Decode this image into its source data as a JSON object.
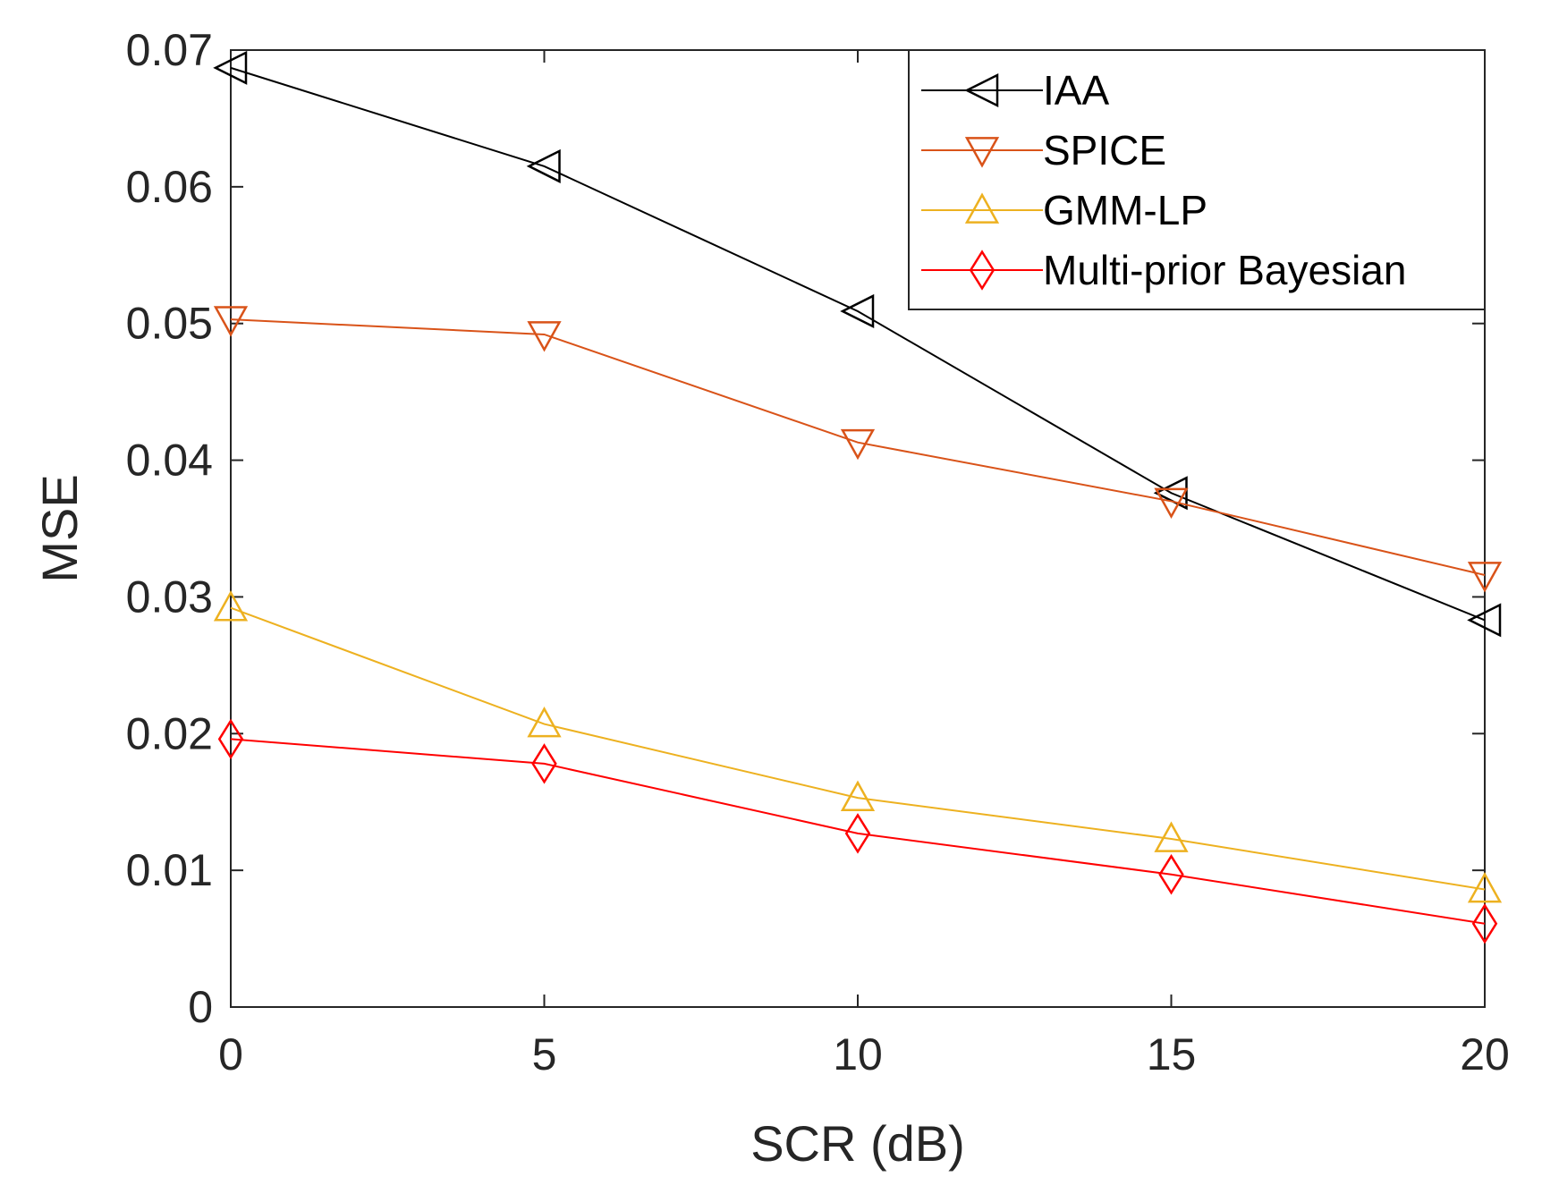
{
  "chart_data": {
    "type": "line",
    "title": "",
    "xlabel": "SCR (dB)",
    "ylabel": "MSE",
    "x": [
      0,
      5,
      10,
      15,
      20
    ],
    "xlim": [
      0,
      20
    ],
    "ylim": [
      0,
      0.07
    ],
    "xticks": [
      0,
      5,
      10,
      15,
      20
    ],
    "xtick_labels": [
      "0",
      "5",
      "10",
      "15",
      "20"
    ],
    "yticks": [
      0,
      0.01,
      0.02,
      0.03,
      0.04,
      0.05,
      0.06,
      0.07
    ],
    "ytick_labels": [
      "0",
      "0.01",
      "0.02",
      "0.03",
      "0.04",
      "0.05",
      "0.06",
      "0.07"
    ],
    "grid": false,
    "legend_position": "top-right",
    "series": [
      {
        "name": "IAA",
        "color": "#000000",
        "marker": "triangle-left",
        "values": [
          0.0687,
          0.0615,
          0.0509,
          0.0376,
          0.0283
        ]
      },
      {
        "name": "SPICE",
        "color": "#D95319",
        "marker": "triangle-down",
        "values": [
          0.0503,
          0.0492,
          0.0413,
          0.037,
          0.0316
        ]
      },
      {
        "name": "GMM-LP",
        "color": "#EDB120",
        "marker": "triangle-up",
        "values": [
          0.0292,
          0.0207,
          0.0153,
          0.0123,
          0.0086
        ]
      },
      {
        "name": "Multi-prior Bayesian",
        "color": "#FF0000",
        "marker": "diamond",
        "values": [
          0.0196,
          0.0178,
          0.0127,
          0.0097,
          0.0061
        ]
      }
    ]
  }
}
